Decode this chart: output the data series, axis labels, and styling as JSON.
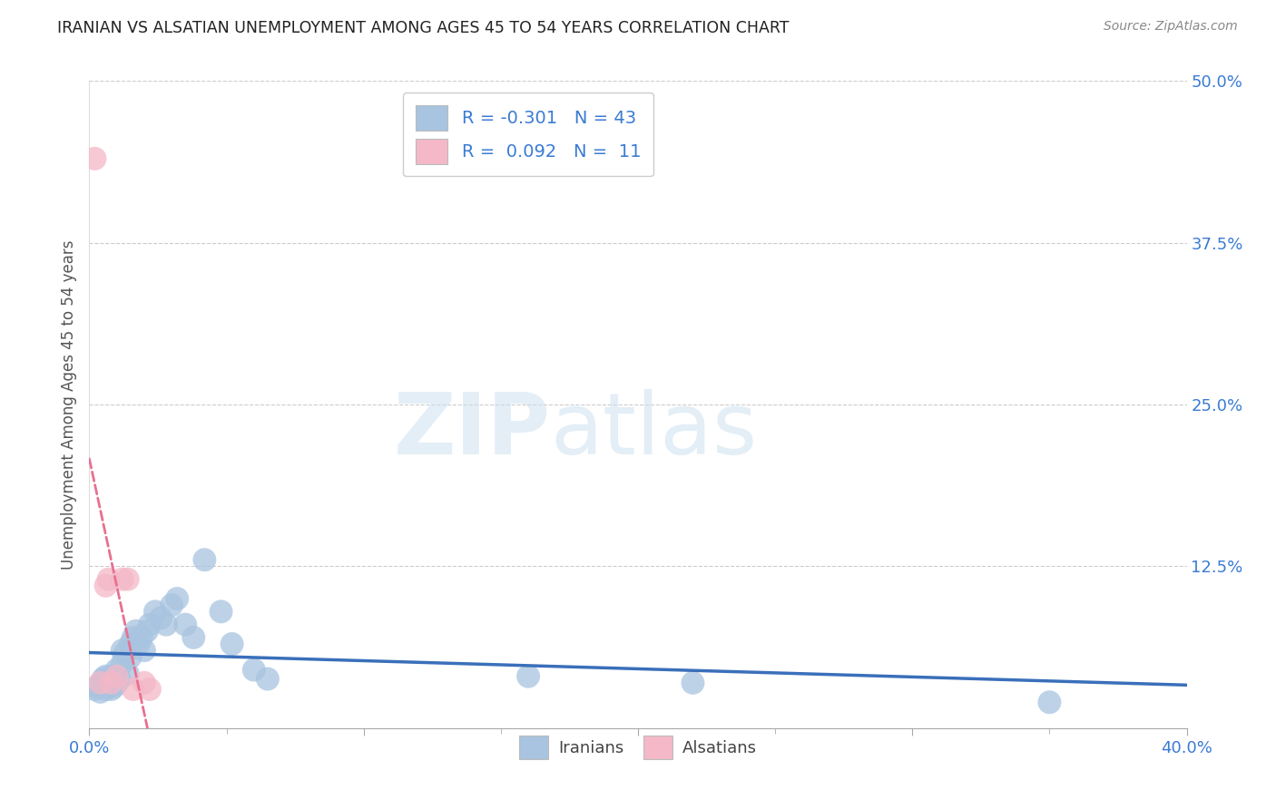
{
  "title": "IRANIAN VS ALSATIAN UNEMPLOYMENT AMONG AGES 45 TO 54 YEARS CORRELATION CHART",
  "source": "Source: ZipAtlas.com",
  "ylabel": "Unemployment Among Ages 45 to 54 years",
  "xlim": [
    0.0,
    0.4
  ],
  "ylim": [
    0.0,
    0.5
  ],
  "xticks": [
    0.0,
    0.1,
    0.2,
    0.3,
    0.4
  ],
  "yticks": [
    0.0,
    0.125,
    0.25,
    0.375,
    0.5
  ],
  "ytick_labels": [
    "",
    "12.5%",
    "25.0%",
    "37.5%",
    "50.0%"
  ],
  "xtick_labels": [
    "0.0%",
    "",
    "",
    "",
    "40.0%"
  ],
  "grid_color": "#cccccc",
  "background_color": "#ffffff",
  "iranians_color": "#a8c4e0",
  "alsatians_color": "#f4b8c8",
  "iranians_line_color": "#3a6fba",
  "alsatians_line_color": "#e87090",
  "legend_R_iranians": "-0.301",
  "legend_N_iranians": "43",
  "legend_R_alsatians": "0.092",
  "legend_N_alsatians": "11",
  "watermark_zip": "ZIP",
  "watermark_atlas": "atlas",
  "iranians_x": [
    0.002,
    0.003,
    0.004,
    0.005,
    0.005,
    0.006,
    0.006,
    0.007,
    0.008,
    0.008,
    0.009,
    0.009,
    0.01,
    0.01,
    0.011,
    0.012,
    0.012,
    0.013,
    0.014,
    0.015,
    0.015,
    0.016,
    0.017,
    0.018,
    0.019,
    0.02,
    0.021,
    0.022,
    0.024,
    0.026,
    0.028,
    0.03,
    0.032,
    0.035,
    0.038,
    0.042,
    0.048,
    0.052,
    0.06,
    0.065,
    0.16,
    0.22,
    0.35
  ],
  "iranians_y": [
    0.03,
    0.032,
    0.028,
    0.035,
    0.038,
    0.03,
    0.04,
    0.033,
    0.03,
    0.04,
    0.032,
    0.038,
    0.035,
    0.045,
    0.038,
    0.06,
    0.05,
    0.058,
    0.042,
    0.055,
    0.065,
    0.07,
    0.075,
    0.065,
    0.07,
    0.06,
    0.075,
    0.08,
    0.09,
    0.085,
    0.08,
    0.095,
    0.1,
    0.08,
    0.07,
    0.13,
    0.09,
    0.065,
    0.045,
    0.038,
    0.04,
    0.035,
    0.02
  ],
  "alsatians_x": [
    0.002,
    0.004,
    0.006,
    0.007,
    0.008,
    0.01,
    0.012,
    0.014,
    0.016,
    0.02,
    0.022
  ],
  "alsatians_y": [
    0.44,
    0.035,
    0.11,
    0.115,
    0.035,
    0.04,
    0.115,
    0.115,
    0.03,
    0.035,
    0.03
  ]
}
